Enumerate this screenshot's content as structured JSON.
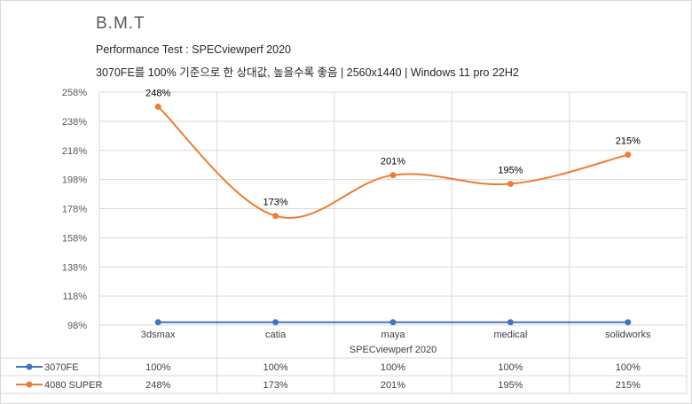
{
  "title": "B.M.T",
  "subtitle_line1": "Performance Test : SPECviewperf 2020",
  "subtitle_line2": "3070FE를 100% 기준으로 한 상대값, 높을수록 좋음 | 2560x1440 | Windows 11 pro 22H2",
  "chart_data": {
    "type": "line",
    "categories": [
      "3dsmax",
      "catia",
      "maya",
      "medical",
      "solidworks"
    ],
    "xlabel": "SPECviewperf 2020",
    "ylabel": "",
    "ylim": [
      98,
      258
    ],
    "yticks": [
      "98%",
      "118%",
      "138%",
      "158%",
      "178%",
      "198%",
      "218%",
      "238%",
      "258%"
    ],
    "grid": true,
    "legend": "data-table",
    "series": [
      {
        "name": "3070FE",
        "color": "#4472c4",
        "values": [
          100,
          100,
          100,
          100,
          100
        ],
        "table_values": [
          "100%",
          "100%",
          "100%",
          "100%",
          "100%"
        ],
        "smooth": false,
        "data_labels": []
      },
      {
        "name": "4080 SUPER",
        "color": "#ed7d31",
        "values": [
          248,
          173,
          201,
          195,
          215
        ],
        "table_values": [
          "248%",
          "173%",
          "201%",
          "195%",
          "215%"
        ],
        "smooth": true,
        "data_labels": [
          "248%",
          "173%",
          "201%",
          "195%",
          "215%"
        ]
      }
    ]
  }
}
